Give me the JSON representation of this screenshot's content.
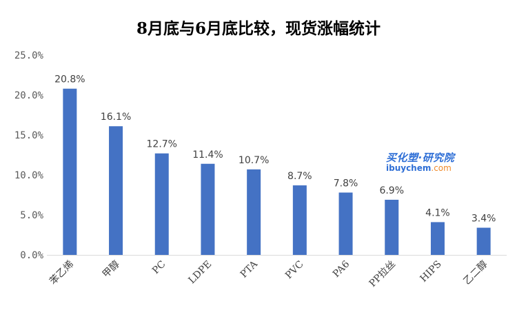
{
  "chart_data": {
    "type": "bar",
    "title": "8月底与6月底比较，现货涨幅统计",
    "xlabel": "",
    "ylabel": "",
    "categories": [
      "苯乙烯",
      "甲醇",
      "PC",
      "LDPE",
      "PTA",
      "PVC",
      "PA6",
      "PP拉丝",
      "HIPS",
      "乙二醇"
    ],
    "values": [
      20.8,
      16.1,
      12.7,
      11.4,
      10.7,
      8.7,
      7.8,
      6.9,
      4.1,
      3.4
    ],
    "data_labels": [
      "20.8%",
      "16.1%",
      "12.7%",
      "11.4%",
      "10.7%",
      "8.7%",
      "7.8%",
      "6.9%",
      "4.1%",
      "3.4%"
    ],
    "ylim": [
      0,
      25
    ],
    "yticks": [
      0,
      5,
      10,
      15,
      20,
      25
    ],
    "ytick_labels": [
      "0.0%",
      "5.0%",
      "10.0%",
      "15.0%",
      "20.0%",
      "25.0%"
    ],
    "grid": false,
    "legend": "none",
    "bar_color": "#4472C4"
  },
  "watermark": {
    "line1": "买化塑·研究院",
    "line2_main": "ibuychem",
    "line2_suffix": ".com"
  },
  "colors": {
    "bar": "#4472C4",
    "axis": "#d9d9d9",
    "watermark_blue": "#2f6fd6",
    "watermark_orange": "#f08a2a"
  }
}
